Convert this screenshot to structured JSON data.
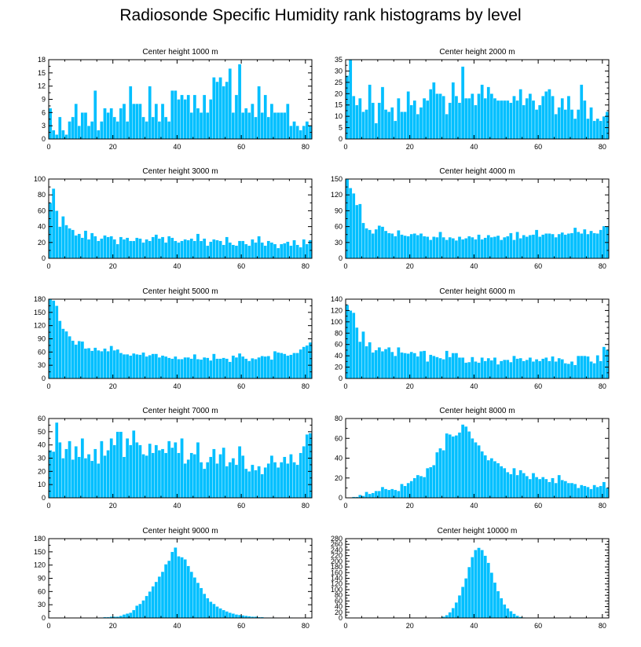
{
  "title": "Radiosonde Specific Humidity rank histograms by level",
  "colors": {
    "bar": "#00bfff",
    "bar_edge": "#ffffff",
    "axis": "#000000"
  },
  "chart_data": [
    {
      "type": "bar",
      "title": "Center height 1000 m",
      "xlabel": "",
      "ylabel": "",
      "xlim": [
        0,
        82
      ],
      "ylim": [
        0,
        18
      ],
      "xticks": [
        0,
        20,
        40,
        60,
        80
      ],
      "yticks": [
        0,
        3,
        6,
        9,
        12,
        15,
        18
      ],
      "x_start": 0,
      "values": [
        7,
        2,
        1,
        5,
        2,
        1,
        4,
        5,
        8,
        3,
        6,
        6,
        3,
        4,
        11,
        2,
        4,
        7,
        6,
        7,
        5,
        4,
        7,
        8,
        4,
        12,
        8,
        8,
        8,
        5,
        4,
        12,
        5,
        8,
        4,
        8,
        5,
        4,
        11,
        11,
        9,
        10,
        9,
        10,
        6,
        10,
        7,
        6,
        10,
        6,
        9,
        14,
        13,
        14,
        12,
        13,
        16,
        6,
        10,
        17,
        6,
        7,
        6,
        8,
        5,
        12,
        6,
        10,
        5,
        8,
        6,
        6,
        6,
        6,
        8,
        3,
        4,
        3,
        2,
        3,
        4,
        3
      ]
    },
    {
      "type": "bar",
      "title": "Center height 2000 m",
      "xlabel": "",
      "ylabel": "",
      "xlim": [
        0,
        82
      ],
      "ylim": [
        0,
        35
      ],
      "xticks": [
        0,
        20,
        40,
        60,
        80
      ],
      "yticks": [
        0,
        5,
        10,
        15,
        20,
        25,
        30,
        35
      ],
      "x_start": 0,
      "values": [
        28,
        35,
        19,
        15,
        18,
        12,
        13,
        24,
        16,
        7,
        16,
        23,
        13,
        12,
        14,
        8,
        18,
        12,
        12,
        21,
        15,
        17,
        11,
        14,
        18,
        17,
        22,
        25,
        20,
        20,
        19,
        11,
        16,
        25,
        19,
        16,
        32,
        18,
        18,
        20,
        15,
        20,
        24,
        18,
        23,
        20,
        18,
        17,
        17,
        17,
        17,
        16,
        19,
        17,
        22,
        15,
        18,
        20,
        17,
        13,
        15,
        19,
        21,
        22,
        19,
        11,
        14,
        18,
        13,
        19,
        13,
        9,
        13,
        24,
        17,
        9,
        14,
        8,
        9,
        8,
        10,
        12
      ]
    },
    {
      "type": "bar",
      "title": "Center height 3000 m",
      "xlabel": "",
      "ylabel": "",
      "xlim": [
        0,
        82
      ],
      "ylim": [
        0,
        100
      ],
      "xticks": [
        0,
        20,
        40,
        60,
        80
      ],
      "yticks": [
        0,
        20,
        40,
        60,
        80,
        100
      ],
      "x_start": 0,
      "values": [
        70,
        88,
        60,
        40,
        53,
        42,
        38,
        36,
        29,
        31,
        26,
        35,
        24,
        32,
        28,
        22,
        25,
        29,
        27,
        28,
        24,
        18,
        27,
        24,
        26,
        22,
        22,
        26,
        25,
        20,
        24,
        22,
        27,
        30,
        25,
        27,
        20,
        28,
        26,
        22,
        20,
        22,
        24,
        23,
        25,
        22,
        31,
        22,
        25,
        16,
        21,
        24,
        23,
        22,
        17,
        27,
        20,
        17,
        16,
        22,
        22,
        18,
        16,
        24,
        20,
        28,
        20,
        16,
        22,
        20,
        18,
        13,
        18,
        19,
        21,
        16,
        23,
        17,
        14,
        24,
        18,
        23
      ]
    },
    {
      "type": "bar",
      "title": "Center height 4000 m",
      "xlabel": "",
      "ylabel": "",
      "xlim": [
        0,
        82
      ],
      "ylim": [
        0,
        150
      ],
      "xticks": [
        0,
        20,
        40,
        60,
        80
      ],
      "yticks": [
        0,
        30,
        60,
        90,
        120,
        150
      ],
      "x_start": 0,
      "values": [
        150,
        133,
        123,
        101,
        103,
        67,
        57,
        54,
        47,
        55,
        62,
        60,
        52,
        48,
        47,
        42,
        53,
        45,
        43,
        42,
        46,
        47,
        44,
        47,
        42,
        41,
        35,
        41,
        40,
        50,
        40,
        35,
        40,
        38,
        34,
        41,
        36,
        38,
        42,
        40,
        36,
        45,
        36,
        39,
        44,
        40,
        41,
        43,
        35,
        40,
        42,
        48,
        35,
        50,
        38,
        44,
        41,
        44,
        45,
        54,
        41,
        45,
        47,
        47,
        46,
        40,
        46,
        49,
        45,
        47,
        48,
        58,
        50,
        47,
        55,
        46,
        52,
        48,
        47,
        54,
        61,
        60
      ]
    },
    {
      "type": "bar",
      "title": "Center height 5000 m",
      "xlabel": "",
      "ylabel": "",
      "xlim": [
        0,
        82
      ],
      "ylim": [
        0,
        180
      ],
      "xticks": [
        0,
        20,
        40,
        60,
        80
      ],
      "yticks": [
        0,
        30,
        60,
        90,
        120,
        150,
        180
      ],
      "x_start": 0,
      "values": [
        180,
        177,
        165,
        131,
        113,
        107,
        96,
        86,
        77,
        85,
        84,
        68,
        69,
        63,
        70,
        64,
        62,
        68,
        62,
        74,
        64,
        66,
        58,
        55,
        55,
        52,
        57,
        55,
        54,
        59,
        50,
        53,
        56,
        56,
        48,
        52,
        50,
        47,
        45,
        50,
        44,
        44,
        48,
        48,
        45,
        55,
        44,
        43,
        48,
        47,
        41,
        56,
        45,
        45,
        47,
        45,
        38,
        52,
        48,
        57,
        50,
        45,
        40,
        46,
        44,
        48,
        51,
        50,
        51,
        43,
        62,
        59,
        58,
        56,
        52,
        54,
        58,
        58,
        66,
        72,
        75,
        82
      ]
    },
    {
      "type": "bar",
      "title": "Center height 6000 m",
      "xlabel": "",
      "ylabel": "",
      "xlim": [
        0,
        82
      ],
      "ylim": [
        0,
        140
      ],
      "xticks": [
        0,
        20,
        40,
        60,
        80
      ],
      "yticks": [
        0,
        20,
        40,
        60,
        80,
        100,
        120,
        140
      ],
      "x_start": 0,
      "values": [
        130,
        120,
        116,
        90,
        65,
        83,
        57,
        64,
        46,
        50,
        55,
        48,
        52,
        55,
        47,
        40,
        55,
        46,
        45,
        44,
        47,
        45,
        39,
        48,
        49,
        30,
        42,
        40,
        38,
        36,
        34,
        49,
        38,
        45,
        45,
        37,
        37,
        28,
        29,
        38,
        30,
        28,
        37,
        31,
        36,
        32,
        37,
        25,
        31,
        33,
        33,
        29,
        40,
        35,
        36,
        31,
        33,
        37,
        30,
        34,
        31,
        35,
        37,
        31,
        39,
        30,
        36,
        34,
        27,
        26,
        30,
        24,
        40,
        40,
        40,
        39,
        30,
        27,
        41,
        31,
        56,
        51
      ]
    },
    {
      "type": "bar",
      "title": "Center height 7000 m",
      "xlabel": "",
      "ylabel": "",
      "xlim": [
        0,
        82
      ],
      "ylim": [
        0,
        60
      ],
      "xticks": [
        0,
        20,
        40,
        60,
        80
      ],
      "yticks": [
        0,
        10,
        20,
        30,
        40,
        50,
        60
      ],
      "x_start": 0,
      "values": [
        36,
        35,
        57,
        42,
        30,
        37,
        43,
        29,
        39,
        31,
        45,
        30,
        33,
        28,
        37,
        26,
        43,
        32,
        36,
        45,
        40,
        50,
        50,
        31,
        45,
        40,
        51,
        42,
        40,
        33,
        32,
        41,
        34,
        40,
        36,
        37,
        34,
        43,
        38,
        42,
        34,
        45,
        26,
        29,
        34,
        33,
        42,
        27,
        22,
        27,
        31,
        37,
        26,
        33,
        38,
        24,
        27,
        30,
        25,
        39,
        32,
        22,
        20,
        25,
        21,
        24,
        18,
        23,
        26,
        32,
        27,
        23,
        27,
        31,
        26,
        33,
        27,
        25,
        34,
        39,
        48,
        49
      ]
    },
    {
      "type": "bar",
      "title": "Center height 8000 m",
      "xlabel": "",
      "ylabel": "",
      "xlim": [
        0,
        82
      ],
      "ylim": [
        0,
        80
      ],
      "xticks": [
        0,
        20,
        40,
        60,
        80
      ],
      "yticks": [
        0,
        20,
        40,
        60,
        80
      ],
      "x_start": 0,
      "values": [
        0,
        0,
        1,
        1,
        3,
        2,
        6,
        4,
        5,
        7,
        7,
        11,
        9,
        8,
        9,
        8,
        7,
        14,
        12,
        15,
        17,
        20,
        23,
        22,
        21,
        30,
        31,
        33,
        46,
        50,
        48,
        65,
        64,
        62,
        63,
        66,
        74,
        72,
        67,
        60,
        56,
        53,
        47,
        43,
        38,
        40,
        37,
        35,
        32,
        30,
        26,
        24,
        30,
        23,
        28,
        25,
        22,
        19,
        25,
        21,
        19,
        21,
        19,
        16,
        20,
        15,
        23,
        18,
        17,
        15,
        15,
        14,
        10,
        13,
        12,
        11,
        9,
        13,
        11,
        12,
        16,
        10
      ]
    },
    {
      "type": "bar",
      "title": "Center height 9000 m",
      "xlabel": "",
      "ylabel": "",
      "xlim": [
        0,
        82
      ],
      "ylim": [
        0,
        180
      ],
      "xticks": [
        0,
        20,
        40,
        60,
        80
      ],
      "yticks": [
        0,
        30,
        60,
        90,
        120,
        150,
        180
      ],
      "x_start": 0,
      "values": [
        0,
        0,
        0,
        0,
        0,
        0,
        0,
        0,
        0,
        0,
        0,
        0,
        0,
        0,
        0,
        1,
        1,
        2,
        2,
        3,
        3,
        3,
        5,
        8,
        10,
        12,
        18,
        28,
        32,
        40,
        50,
        60,
        72,
        82,
        94,
        105,
        122,
        130,
        150,
        160,
        140,
        138,
        133,
        118,
        105,
        92,
        80,
        68,
        55,
        45,
        37,
        32,
        26,
        22,
        18,
        15,
        12,
        10,
        8,
        7,
        6,
        5,
        4,
        3,
        3,
        2,
        2,
        1,
        1,
        1,
        1,
        0,
        0,
        0,
        0,
        1,
        0,
        0,
        0,
        0,
        0,
        0
      ]
    },
    {
      "type": "bar",
      "title": "Center height 10000 m",
      "xlabel": "",
      "ylabel": "",
      "xlim": [
        0,
        82
      ],
      "ylim": [
        0,
        280
      ],
      "xticks": [
        0,
        20,
        40,
        60,
        80
      ],
      "yticks": [
        0,
        20,
        40,
        60,
        80,
        100,
        120,
        140,
        160,
        180,
        200,
        220,
        240,
        260,
        280
      ],
      "x_start": 0,
      "values": [
        0,
        0,
        0,
        0,
        0,
        0,
        0,
        0,
        0,
        0,
        0,
        0,
        0,
        0,
        0,
        0,
        0,
        0,
        0,
        0,
        0,
        0,
        0,
        0,
        0,
        0,
        0,
        0,
        1,
        2,
        5,
        10,
        20,
        35,
        55,
        80,
        110,
        140,
        180,
        215,
        240,
        248,
        240,
        220,
        195,
        160,
        125,
        95,
        70,
        48,
        34,
        24,
        15,
        8,
        4,
        2,
        1,
        1,
        0,
        0,
        0,
        0,
        0,
        0,
        0,
        0,
        0,
        0,
        0,
        0,
        0,
        0,
        0,
        0,
        0,
        0,
        0,
        0,
        0,
        0,
        0,
        0
      ]
    }
  ]
}
